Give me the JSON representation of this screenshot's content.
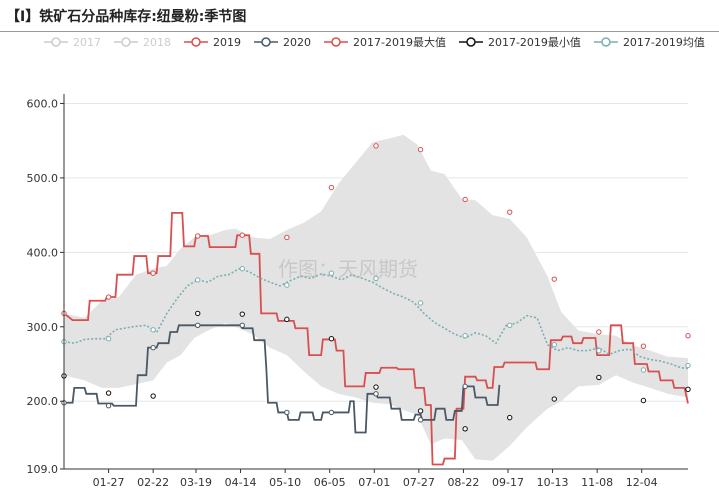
{
  "header": {
    "title": "【I】铁矿石分品种库存:纽曼粉:季节图"
  },
  "watermark": "作图：天风期货",
  "chart_data": {
    "type": "line",
    "title": "【I】铁矿石分品种库存:纽曼粉:季节图",
    "xlabel": "",
    "ylabel": "",
    "ylim": [
      109.0,
      610.0
    ],
    "y_ticks": [
      "109.0",
      "200.0",
      "300.0",
      "400.0",
      "500.0",
      "600.0"
    ],
    "x_ticks": [
      "01-27",
      "02-22",
      "03-19",
      "04-14",
      "05-10",
      "06-05",
      "07-01",
      "07-27",
      "08-22",
      "09-17",
      "10-13",
      "11-08",
      "12-04"
    ],
    "x_range_days": [
      0,
      364
    ],
    "x_tick_days": [
      26,
      52,
      77,
      103,
      129,
      155,
      181,
      207,
      233,
      259,
      285,
      311,
      337
    ],
    "grid": true,
    "legend": "top",
    "legend_items": [
      {
        "name": "2017",
        "color": "#cccccc",
        "inactive": true
      },
      {
        "name": "2018",
        "color": "#cccccc",
        "inactive": true
      },
      {
        "name": "2019",
        "color": "#d94e4e",
        "inactive": false
      },
      {
        "name": "2020",
        "color": "#4a5966",
        "inactive": false
      },
      {
        "name": "2017-2019最大值",
        "color": "#d94e4e",
        "inactive": false
      },
      {
        "name": "2017-2019最小值",
        "color": "#111111",
        "inactive": false
      },
      {
        "name": "2017-2019均值",
        "color": "#7aaeb0",
        "inactive": false
      }
    ],
    "band_color": "#e3e3e3",
    "band": [
      [
        0,
        235,
        318
      ],
      [
        12,
        228,
        312
      ],
      [
        22,
        218,
        335
      ],
      [
        32,
        218,
        340
      ],
      [
        42,
        223,
        370
      ],
      [
        52,
        228,
        378
      ],
      [
        60,
        252,
        382
      ],
      [
        68,
        262,
        405
      ],
      [
        76,
        285,
        420
      ],
      [
        84,
        295,
        422
      ],
      [
        94,
        305,
        430
      ],
      [
        100,
        300,
        432
      ],
      [
        110,
        290,
        420
      ],
      [
        120,
        272,
        418
      ],
      [
        130,
        262,
        430
      ],
      [
        140,
        240,
        440
      ],
      [
        150,
        220,
        455
      ],
      [
        160,
        210,
        492
      ],
      [
        170,
        205,
        520
      ],
      [
        180,
        198,
        548
      ],
      [
        190,
        196,
        553
      ],
      [
        198,
        188,
        558
      ],
      [
        206,
        182,
        545
      ],
      [
        214,
        142,
        510
      ],
      [
        222,
        150,
        505
      ],
      [
        232,
        148,
        472
      ],
      [
        240,
        122,
        470
      ],
      [
        250,
        120,
        450
      ],
      [
        260,
        140,
        445
      ],
      [
        270,
        165,
        420
      ],
      [
        282,
        190,
        368
      ],
      [
        290,
        200,
        320
      ],
      [
        300,
        220,
        295
      ],
      [
        312,
        222,
        290
      ],
      [
        322,
        235,
        288
      ],
      [
        332,
        225,
        275
      ],
      [
        342,
        218,
        268
      ],
      [
        352,
        210,
        260
      ],
      [
        364,
        205,
        258
      ]
    ],
    "series": [
      {
        "name": "2019",
        "color": "#d94e4e",
        "dashed": false,
        "points": [
          [
            0,
            318
          ],
          [
            5,
            309
          ],
          [
            14,
            309
          ],
          [
            15,
            335
          ],
          [
            24,
            335
          ],
          [
            25,
            340
          ],
          [
            30,
            340
          ],
          [
            31,
            370
          ],
          [
            40,
            370
          ],
          [
            41,
            395
          ],
          [
            48,
            395
          ],
          [
            49,
            372
          ],
          [
            54,
            372
          ],
          [
            55,
            395
          ],
          [
            62,
            395
          ],
          [
            63,
            453
          ],
          [
            69,
            453
          ],
          [
            70,
            408
          ],
          [
            76,
            408
          ],
          [
            77,
            422
          ],
          [
            84,
            422
          ],
          [
            85,
            407
          ],
          [
            100,
            407
          ],
          [
            101,
            423
          ],
          [
            108,
            423
          ],
          [
            109,
            398
          ],
          [
            114,
            398
          ],
          [
            115,
            318
          ],
          [
            124,
            318
          ],
          [
            125,
            308
          ],
          [
            134,
            308
          ],
          [
            135,
            298
          ],
          [
            142,
            298
          ],
          [
            143,
            262
          ],
          [
            150,
            262
          ],
          [
            151,
            283
          ],
          [
            158,
            283
          ],
          [
            159,
            268
          ],
          [
            163,
            268
          ],
          [
            164,
            220
          ],
          [
            175,
            220
          ],
          [
            176,
            238
          ],
          [
            184,
            238
          ],
          [
            185,
            245
          ],
          [
            194,
            245
          ],
          [
            195,
            243
          ],
          [
            204,
            243
          ],
          [
            205,
            218
          ],
          [
            210,
            218
          ],
          [
            211,
            195
          ],
          [
            214,
            195
          ],
          [
            215,
            115
          ],
          [
            221,
            115
          ],
          [
            222,
            123
          ],
          [
            228,
            123
          ],
          [
            229,
            190
          ],
          [
            233,
            190
          ],
          [
            234,
            233
          ],
          [
            240,
            233
          ],
          [
            241,
            228
          ],
          [
            246,
            228
          ],
          [
            247,
            218
          ],
          [
            250,
            218
          ],
          [
            251,
            246
          ],
          [
            256,
            246
          ],
          [
            257,
            252
          ],
          [
            275,
            252
          ],
          [
            276,
            243
          ],
          [
            283,
            243
          ],
          [
            284,
            282
          ],
          [
            290,
            282
          ],
          [
            291,
            287
          ],
          [
            296,
            287
          ],
          [
            297,
            278
          ],
          [
            302,
            278
          ],
          [
            303,
            285
          ],
          [
            310,
            285
          ],
          [
            311,
            262
          ],
          [
            318,
            262
          ],
          [
            319,
            302
          ],
          [
            325,
            302
          ],
          [
            326,
            278
          ],
          [
            332,
            278
          ],
          [
            333,
            250
          ],
          [
            340,
            250
          ],
          [
            341,
            240
          ],
          [
            347,
            240
          ],
          [
            348,
            228
          ],
          [
            355,
            228
          ],
          [
            356,
            218
          ],
          [
            362,
            218
          ],
          [
            364,
            197
          ]
        ]
      },
      {
        "name": "2020",
        "color": "#4a5966",
        "dashed": false,
        "points": [
          [
            0,
            198
          ],
          [
            5,
            198
          ],
          [
            6,
            218
          ],
          [
            12,
            218
          ],
          [
            13,
            210
          ],
          [
            19,
            210
          ],
          [
            20,
            197
          ],
          [
            28,
            197
          ],
          [
            29,
            194
          ],
          [
            42,
            194
          ],
          [
            43,
            235
          ],
          [
            48,
            235
          ],
          [
            49,
            272
          ],
          [
            54,
            272
          ],
          [
            55,
            278
          ],
          [
            61,
            278
          ],
          [
            62,
            293
          ],
          [
            66,
            293
          ],
          [
            67,
            302
          ],
          [
            103,
            302
          ],
          [
            104,
            298
          ],
          [
            110,
            298
          ],
          [
            111,
            282
          ],
          [
            117,
            282
          ],
          [
            118,
            245
          ],
          [
            119,
            198
          ],
          [
            124,
            198
          ],
          [
            125,
            185
          ],
          [
            130,
            185
          ],
          [
            131,
            175
          ],
          [
            137,
            175
          ],
          [
            138,
            185
          ],
          [
            145,
            185
          ],
          [
            146,
            175
          ],
          [
            150,
            175
          ],
          [
            151,
            185
          ],
          [
            166,
            185
          ],
          [
            167,
            200
          ],
          [
            169,
            200
          ],
          [
            170,
            158
          ],
          [
            176,
            158
          ],
          [
            177,
            210
          ],
          [
            182,
            210
          ],
          [
            183,
            205
          ],
          [
            190,
            205
          ],
          [
            191,
            190
          ],
          [
            196,
            190
          ],
          [
            197,
            175
          ],
          [
            204,
            175
          ],
          [
            205,
            182
          ],
          [
            208,
            182
          ],
          [
            209,
            175
          ],
          [
            216,
            175
          ],
          [
            217,
            190
          ],
          [
            222,
            190
          ],
          [
            223,
            175
          ],
          [
            227,
            175
          ],
          [
            228,
            187
          ],
          [
            232,
            187
          ],
          [
            233,
            220
          ],
          [
            239,
            220
          ],
          [
            240,
            205
          ],
          [
            246,
            205
          ],
          [
            247,
            195
          ],
          [
            253,
            195
          ],
          [
            254,
            222
          ]
        ]
      },
      {
        "name": "2017-2019均值",
        "color": "#7aaeb0",
        "dashed": true,
        "points": [
          [
            0,
            280
          ],
          [
            6,
            278
          ],
          [
            12,
            283
          ],
          [
            18,
            284
          ],
          [
            24,
            284
          ],
          [
            30,
            296
          ],
          [
            40,
            300
          ],
          [
            48,
            302
          ],
          [
            54,
            292
          ],
          [
            60,
            318
          ],
          [
            66,
            338
          ],
          [
            72,
            355
          ],
          [
            78,
            363
          ],
          [
            84,
            360
          ],
          [
            90,
            368
          ],
          [
            96,
            370
          ],
          [
            102,
            378
          ],
          [
            108,
            374
          ],
          [
            114,
            366
          ],
          [
            120,
            360
          ],
          [
            126,
            355
          ],
          [
            132,
            362
          ],
          [
            138,
            368
          ],
          [
            144,
            365
          ],
          [
            150,
            371
          ],
          [
            156,
            368
          ],
          [
            162,
            363
          ],
          [
            168,
            370
          ],
          [
            174,
            365
          ],
          [
            180,
            360
          ],
          [
            186,
            352
          ],
          [
            192,
            345
          ],
          [
            198,
            340
          ],
          [
            204,
            333
          ],
          [
            210,
            318
          ],
          [
            216,
            306
          ],
          [
            222,
            298
          ],
          [
            228,
            290
          ],
          [
            234,
            285
          ],
          [
            240,
            292
          ],
          [
            246,
            288
          ],
          [
            252,
            278
          ],
          [
            258,
            302
          ],
          [
            264,
            305
          ],
          [
            270,
            315
          ],
          [
            276,
            312
          ],
          [
            282,
            276
          ],
          [
            288,
            268
          ],
          [
            294,
            272
          ],
          [
            300,
            268
          ],
          [
            306,
            268
          ],
          [
            312,
            272
          ],
          [
            318,
            263
          ],
          [
            324,
            268
          ],
          [
            330,
            270
          ],
          [
            336,
            260
          ],
          [
            342,
            256
          ],
          [
            348,
            254
          ],
          [
            354,
            250
          ],
          [
            360,
            245
          ],
          [
            364,
            244
          ]
        ]
      }
    ],
    "max_markers": [
      [
        0,
        318
      ],
      [
        26,
        340
      ],
      [
        52,
        372
      ],
      [
        78,
        422
      ],
      [
        104,
        423
      ],
      [
        130,
        420
      ],
      [
        156,
        487
      ],
      [
        182,
        543
      ],
      [
        208,
        538
      ],
      [
        234,
        471
      ],
      [
        260,
        454
      ],
      [
        286,
        364
      ],
      [
        312,
        293
      ],
      [
        338,
        274
      ],
      [
        364,
        288
      ]
    ],
    "min_markers": [
      [
        0,
        234
      ],
      [
        26,
        211
      ],
      [
        52,
        207
      ],
      [
        78,
        318
      ],
      [
        104,
        317
      ],
      [
        130,
        310
      ],
      [
        156,
        284
      ],
      [
        182,
        219
      ],
      [
        208,
        187
      ],
      [
        234,
        163
      ],
      [
        260,
        178
      ],
      [
        286,
        203
      ],
      [
        312,
        232
      ],
      [
        338,
        201
      ],
      [
        364,
        216
      ]
    ],
    "marker_2020": [
      [
        0,
        198
      ],
      [
        26,
        194
      ],
      [
        52,
        272
      ],
      [
        78,
        302
      ],
      [
        104,
        302
      ],
      [
        130,
        185
      ],
      [
        156,
        185
      ],
      [
        182,
        210
      ],
      [
        208,
        175
      ],
      [
        234,
        220
      ]
    ],
    "marker_avg": [
      [
        0,
        280
      ],
      [
        26,
        284
      ],
      [
        52,
        296
      ],
      [
        78,
        363
      ],
      [
        104,
        378
      ],
      [
        130,
        356
      ],
      [
        156,
        372
      ],
      [
        182,
        365
      ],
      [
        208,
        332
      ],
      [
        234,
        288
      ],
      [
        260,
        302
      ],
      [
        286,
        276
      ],
      [
        312,
        268
      ],
      [
        338,
        242
      ],
      [
        364,
        248
      ]
    ]
  }
}
